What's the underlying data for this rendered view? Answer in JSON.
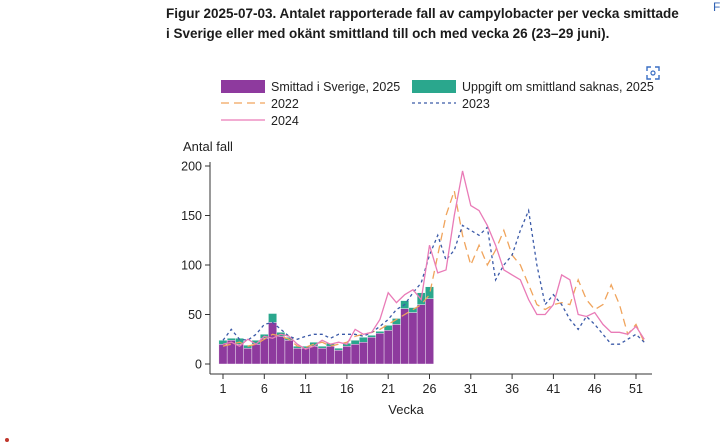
{
  "caption": {
    "line1": "Figur 2025-07-03. Antalet rapporterade fall av campylobacter per vecka smittade",
    "line2": "i Sverige eller med okänt smittland till och med vecka 26 (23–29 juni)."
  },
  "edge_letter": "F",
  "icons": {
    "expand": "expand-icon"
  },
  "chart_data": {
    "type": "bar",
    "xlabel": "Vecka",
    "ylabel": "Antal fall",
    "ylim": [
      0,
      200
    ],
    "xlim": [
      0,
      53
    ],
    "x_ticks": [
      1,
      6,
      11,
      16,
      21,
      26,
      31,
      36,
      41,
      46,
      51
    ],
    "y_ticks": [
      0,
      50,
      100,
      150,
      200
    ],
    "grid": false,
    "legend_position": "top",
    "bar_weeks": [
      1,
      2,
      3,
      4,
      5,
      6,
      7,
      8,
      9,
      10,
      11,
      12,
      13,
      14,
      15,
      16,
      17,
      18,
      19,
      20,
      21,
      22,
      23,
      24,
      25,
      26
    ],
    "stacked_series": [
      {
        "name": "Smittad i Sverige, 2025",
        "color": "#8e3a9e",
        "values": [
          20,
          24,
          20,
          16,
          20,
          26,
          42,
          28,
          24,
          16,
          16,
          18,
          16,
          18,
          14,
          18,
          20,
          22,
          27,
          31,
          34,
          40,
          56,
          52,
          60,
          66
        ]
      },
      {
        "name": "Uppgift om smittland saknas, 2025",
        "color": "#2aa78d",
        "values": [
          4,
          2,
          6,
          3,
          4,
          4,
          9,
          4,
          3,
          2,
          2,
          4,
          2,
          3,
          2,
          3,
          4,
          5,
          2,
          2,
          5,
          6,
          8,
          5,
          12,
          12
        ]
      }
    ],
    "line_series": [
      {
        "name": "2022",
        "color": "#f0a45c",
        "dash": "dashed",
        "x": [
          1,
          2,
          3,
          4,
          5,
          6,
          7,
          8,
          9,
          10,
          11,
          12,
          13,
          14,
          15,
          16,
          17,
          18,
          19,
          20,
          21,
          22,
          23,
          24,
          25,
          26,
          27,
          28,
          29,
          30,
          31,
          32,
          33,
          34,
          35,
          36,
          37,
          38,
          39,
          40,
          41,
          42,
          43,
          44,
          45,
          46,
          47,
          48,
          49,
          50,
          51,
          52
        ],
        "values": [
          18,
          20,
          22,
          18,
          20,
          25,
          30,
          28,
          25,
          18,
          17,
          20,
          22,
          18,
          20,
          22,
          28,
          30,
          32,
          35,
          40,
          45,
          50,
          55,
          60,
          70,
          110,
          150,
          175,
          130,
          100,
          120,
          100,
          115,
          135,
          110,
          100,
          80,
          60,
          55,
          60,
          62,
          60,
          85,
          65,
          55,
          60,
          80,
          60,
          30,
          40,
          22
        ]
      },
      {
        "name": "2023",
        "color": "#3b5aa8",
        "dash": "dotted",
        "x": [
          1,
          2,
          3,
          4,
          5,
          6,
          7,
          8,
          9,
          10,
          11,
          12,
          13,
          14,
          15,
          16,
          17,
          18,
          19,
          20,
          21,
          22,
          23,
          24,
          25,
          26,
          27,
          28,
          29,
          30,
          31,
          32,
          33,
          34,
          35,
          36,
          37,
          38,
          39,
          40,
          41,
          42,
          43,
          44,
          45,
          46,
          47,
          48,
          49,
          50,
          51,
          52
        ],
        "values": [
          24,
          35,
          25,
          24,
          30,
          40,
          42,
          35,
          28,
          25,
          28,
          30,
          30,
          26,
          30,
          30,
          30,
          28,
          32,
          38,
          45,
          55,
          60,
          72,
          82,
          110,
          130,
          105,
          115,
          140,
          135,
          130,
          138,
          85,
          100,
          110,
          135,
          155,
          100,
          60,
          70,
          60,
          45,
          35,
          48,
          40,
          30,
          20,
          20,
          25,
          30,
          22
        ]
      },
      {
        "name": "2024",
        "color": "#e97bb7",
        "dash": "solid",
        "x": [
          1,
          2,
          3,
          4,
          5,
          6,
          7,
          8,
          9,
          10,
          11,
          12,
          13,
          14,
          15,
          16,
          17,
          18,
          19,
          20,
          21,
          22,
          23,
          24,
          25,
          26,
          27,
          28,
          29,
          30,
          31,
          32,
          33,
          34,
          35,
          36,
          37,
          38,
          39,
          40,
          41,
          42,
          43,
          44,
          45,
          46,
          47,
          48,
          49,
          50,
          51,
          52
        ],
        "values": [
          20,
          22,
          18,
          25,
          20,
          28,
          26,
          30,
          28,
          20,
          15,
          18,
          24,
          20,
          22,
          20,
          35,
          30,
          32,
          45,
          72,
          62,
          70,
          75,
          65,
          120,
          92,
          95,
          150,
          195,
          160,
          155,
          140,
          120,
          95,
          90,
          85,
          65,
          50,
          50,
          60,
          90,
          85,
          50,
          48,
          52,
          40,
          32,
          32,
          30,
          38,
          25
        ]
      }
    ]
  }
}
